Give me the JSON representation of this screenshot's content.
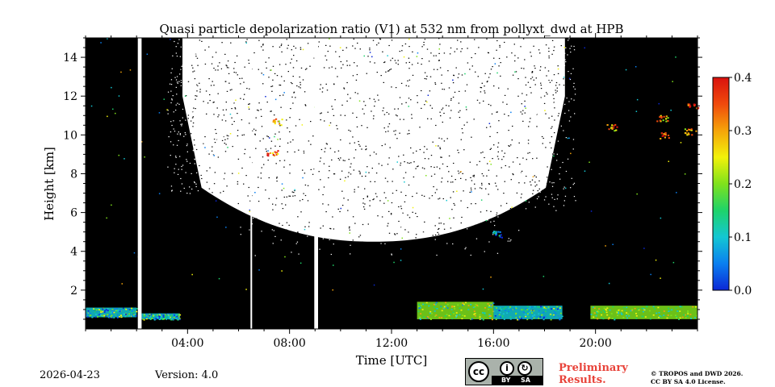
{
  "chart_data": {
    "type": "heatmap",
    "title": "Quasi particle depolarization ratio (V1) at 532 nm from pollyxt_dwd at HPB",
    "xlabel": "Time [UTC]",
    "ylabel": "Height [km]",
    "xlim_hours": [
      0,
      24
    ],
    "ylim": [
      0,
      15
    ],
    "xticks": [
      {
        "value": 4,
        "label": "04:00"
      },
      {
        "value": 8,
        "label": "08:00"
      },
      {
        "value": 12,
        "label": "12:00"
      },
      {
        "value": 16,
        "label": "16:00"
      },
      {
        "value": 20,
        "label": "20:00"
      }
    ],
    "yticks": [
      {
        "value": 2,
        "label": "2"
      },
      {
        "value": 4,
        "label": "4"
      },
      {
        "value": 6,
        "label": "6"
      },
      {
        "value": 8,
        "label": "8"
      },
      {
        "value": 10,
        "label": "10"
      },
      {
        "value": 12,
        "label": "12"
      },
      {
        "value": 14,
        "label": "14"
      }
    ],
    "colorbar": {
      "min": 0.0,
      "max": 0.4,
      "ticks": [
        {
          "value": 0.0,
          "label": "0.0"
        },
        {
          "value": 0.1,
          "label": "0.1"
        },
        {
          "value": 0.2,
          "label": "0.2"
        },
        {
          "value": 0.3,
          "label": "0.3"
        },
        {
          "value": 0.4,
          "label": "0.4"
        }
      ],
      "colors": [
        "#0b27d6",
        "#0a7ff0",
        "#13c7d3",
        "#1ed36a",
        "#7fe21c",
        "#f2f20a",
        "#f5a40a",
        "#f04a0c",
        "#d9120e"
      ]
    },
    "data_gaps_hours": [
      {
        "start": 2.05,
        "end": 2.2
      },
      {
        "start": 6.47,
        "end": 6.52
      },
      {
        "start": 8.97,
        "end": 9.12
      }
    ],
    "high_signal_region": {
      "description_level": "noise-dominated white area aloft",
      "time_start": 3.8,
      "time_end": 18.8,
      "bottom_height_center": 4.5,
      "bottom_height_edges": 8.0
    },
    "aerosol_layers": [
      {
        "time_start": 0.0,
        "time_end": 2.0,
        "height_bottom": 0.6,
        "height_top": 1.1,
        "ratio": 0.12
      },
      {
        "time_start": 2.2,
        "time_end": 3.7,
        "height_bottom": 0.5,
        "height_top": 0.8,
        "ratio": 0.12
      },
      {
        "time_start": 13.0,
        "time_end": 16.0,
        "height_bottom": 0.5,
        "height_top": 1.4,
        "ratio": 0.18
      },
      {
        "time_start": 16.0,
        "time_end": 18.7,
        "height_bottom": 0.5,
        "height_top": 1.2,
        "ratio": 0.12
      },
      {
        "time_start": 19.8,
        "time_end": 24.0,
        "height_bottom": 0.5,
        "height_top": 1.2,
        "ratio": 0.2
      }
    ],
    "cloud_features": [
      {
        "time": 7.5,
        "height": 10.7,
        "ratio": 0.3
      },
      {
        "time": 7.3,
        "height": 9.1,
        "ratio": 0.32
      },
      {
        "time": 16.1,
        "height": 4.9,
        "ratio": 0.08
      },
      {
        "time": 20.6,
        "height": 10.4,
        "ratio": 0.3
      },
      {
        "time": 22.6,
        "height": 10.9,
        "ratio": 0.28
      },
      {
        "time": 22.7,
        "height": 10.0,
        "ratio": 0.33
      },
      {
        "time": 23.7,
        "height": 10.2,
        "ratio": 0.3
      },
      {
        "time": 23.8,
        "height": 11.5,
        "ratio": 0.36
      }
    ]
  },
  "footer": {
    "date": "2026-04-23",
    "version": "Version: 4.0",
    "prelim_line1": "Preliminary",
    "prelim_line2": "Results.",
    "copyright_line1": "© TROPOS and DWD 2026.",
    "copyright_line2": "CC BY SA 4.0 License.",
    "cc_badge": {
      "cc": "cc",
      "by": "BY",
      "sa": "SA"
    }
  }
}
